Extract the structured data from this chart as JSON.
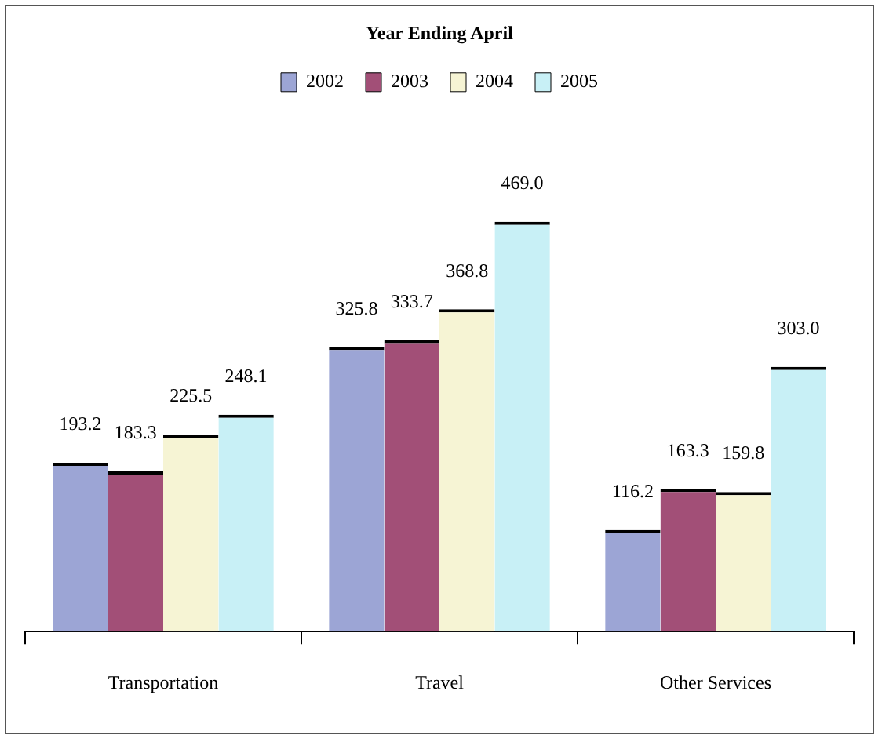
{
  "chart_data": {
    "type": "bar",
    "legend_title": "Year Ending April",
    "legend": "top",
    "grid": false,
    "categories": [
      "Transportation",
      "Travel",
      "Other Services"
    ],
    "series": [
      {
        "name": "2002",
        "color": "#9ca5d5",
        "values": [
          193.2,
          325.8,
          116.2
        ],
        "value_labels": [
          "193.2",
          "325.8",
          "116.2"
        ]
      },
      {
        "name": "2003",
        "color": "#a24f77",
        "values": [
          183.3,
          333.7,
          163.3
        ],
        "value_labels": [
          "183.3",
          "333.7",
          "163.3"
        ]
      },
      {
        "name": "2004",
        "color": "#f6f4d4",
        "values": [
          225.5,
          368.8,
          159.8
        ],
        "value_labels": [
          "225.5",
          "368.8",
          "159.8"
        ]
      },
      {
        "name": "2005",
        "color": "#c8f0f6",
        "values": [
          248.1,
          469.0,
          303.0
        ],
        "value_labels": [
          "248.1",
          "469.0",
          "303.0"
        ]
      }
    ]
  }
}
